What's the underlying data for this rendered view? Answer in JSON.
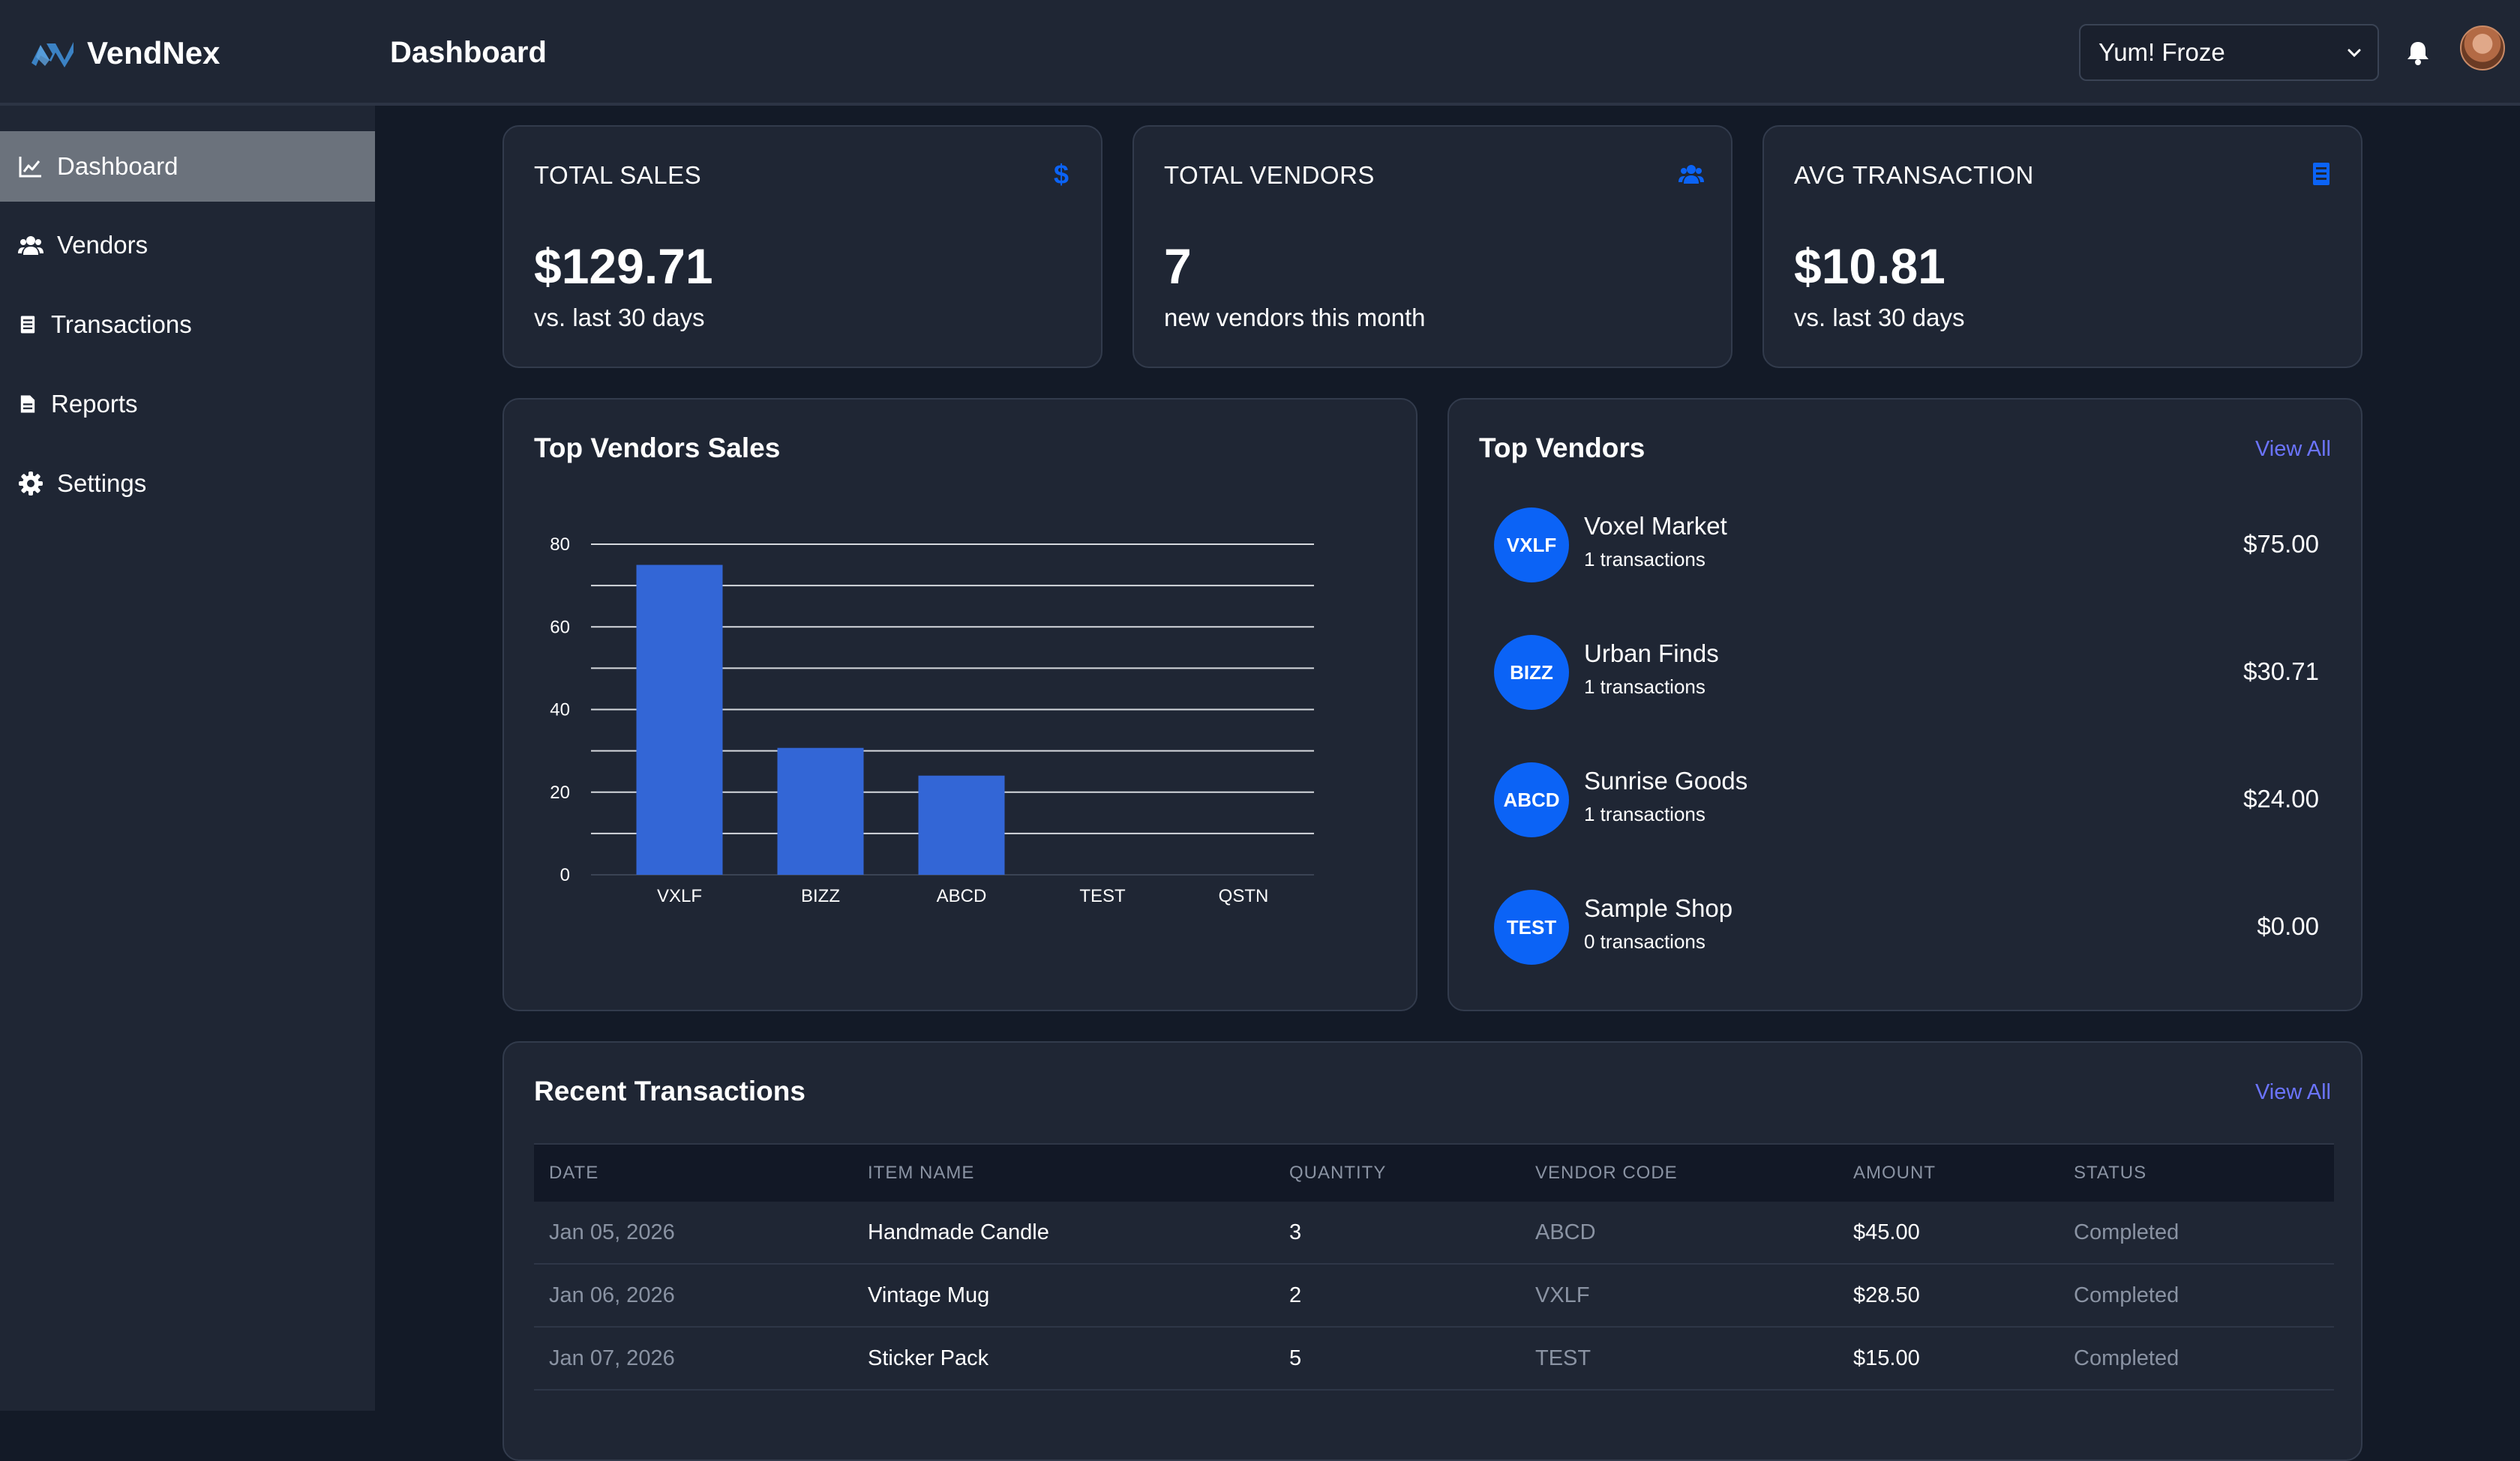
{
  "brand": {
    "name": "VendNex"
  },
  "header": {
    "title": "Dashboard",
    "store_select": "Yum! Froze"
  },
  "sidebar": {
    "items": [
      {
        "label": "Dashboard",
        "icon": "chart-line-icon",
        "active": true
      },
      {
        "label": "Vendors",
        "icon": "users-icon"
      },
      {
        "label": "Transactions",
        "icon": "receipt-icon"
      },
      {
        "label": "Reports",
        "icon": "file-icon"
      },
      {
        "label": "Settings",
        "icon": "gear-icon"
      }
    ]
  },
  "stats": [
    {
      "label": "TOTAL SALES",
      "value": "$129.71",
      "sub": "vs. last 30 days",
      "icon": "dollar-icon"
    },
    {
      "label": "TOTAL VENDORS",
      "value": "7",
      "sub": "new vendors this month",
      "icon": "users-icon"
    },
    {
      "label": "AVG TRANSACTION",
      "value": "$10.81",
      "sub": "vs. last 30 days",
      "icon": "receipt-icon"
    }
  ],
  "sales_chart": {
    "title": "Top Vendors Sales"
  },
  "chart_data": {
    "type": "bar",
    "categories": [
      "VXLF",
      "BIZZ",
      "ABCD",
      "TEST",
      "QSTN"
    ],
    "values": [
      75,
      30.71,
      24,
      0,
      0
    ],
    "ylim": [
      0,
      80
    ],
    "yticks": [
      0,
      20,
      40,
      60,
      80
    ],
    "grid": true,
    "color": "#3366d6"
  },
  "top_vendors": {
    "title": "Top Vendors",
    "view_all": "View All",
    "items": [
      {
        "code": "VXLF",
        "name": "Voxel Market",
        "tx": "1 transactions",
        "amount": "$75.00"
      },
      {
        "code": "BIZZ",
        "name": "Urban Finds",
        "tx": "1 transactions",
        "amount": "$30.71"
      },
      {
        "code": "ABCD",
        "name": "Sunrise Goods",
        "tx": "1 transactions",
        "amount": "$24.00"
      },
      {
        "code": "TEST",
        "name": "Sample Shop",
        "tx": "0 transactions",
        "amount": "$0.00"
      }
    ]
  },
  "recent_tx": {
    "title": "Recent Transactions",
    "view_all": "View All",
    "columns": [
      "DATE",
      "ITEM NAME",
      "QUANTITY",
      "VENDOR CODE",
      "AMOUNT",
      "STATUS"
    ],
    "rows": [
      [
        "Jan 05, 2026",
        "Handmade Candle",
        "3",
        "ABCD",
        "$45.00",
        "Completed"
      ],
      [
        "Jan 06, 2026",
        "Vintage Mug",
        "2",
        "VXLF",
        "$28.50",
        "Completed"
      ],
      [
        "Jan 07, 2026",
        "Sticker Pack",
        "5",
        "TEST",
        "$15.00",
        "Completed"
      ]
    ]
  },
  "colors": {
    "accent": "#0b63f6",
    "link": "#6b74ff",
    "bar": "#3366d6"
  }
}
